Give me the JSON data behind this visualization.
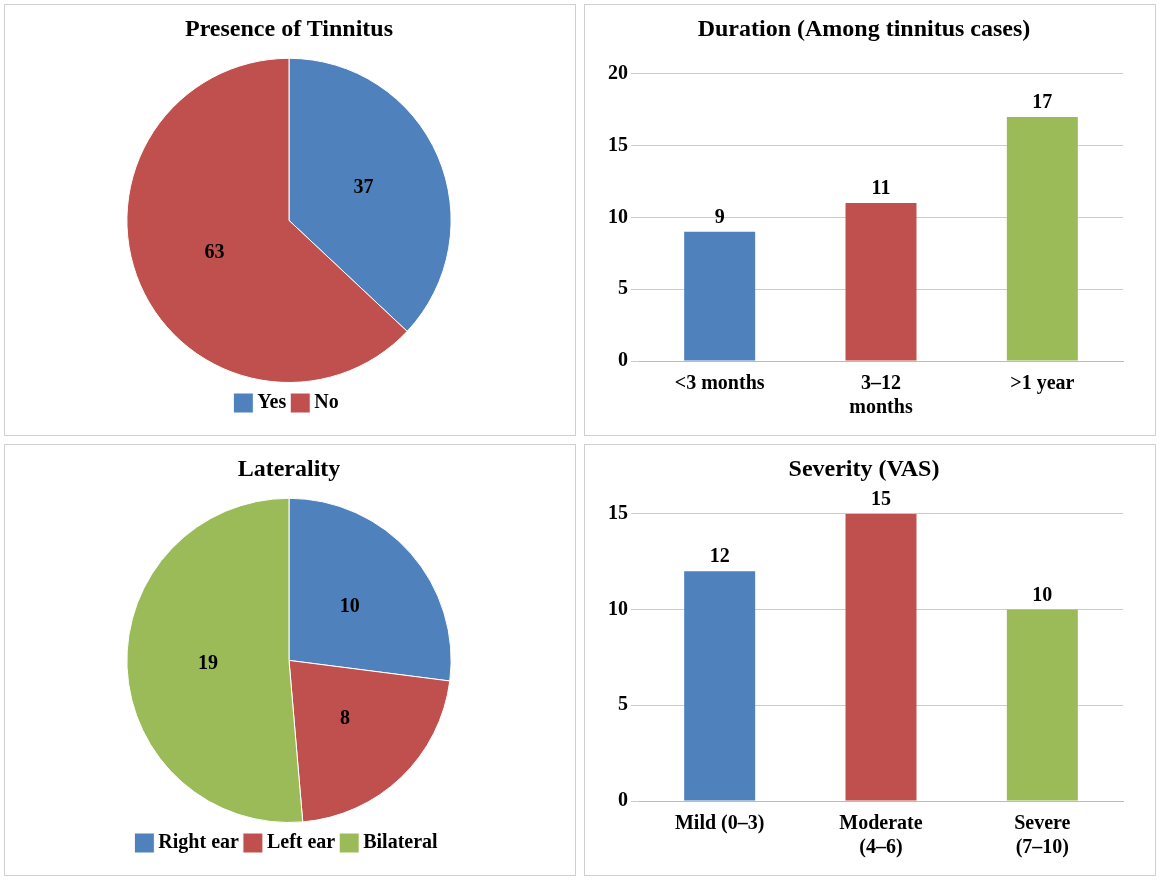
{
  "chart_data": [
    {
      "type": "pie",
      "title": "Presence of Tinnitus",
      "categories": [
        "Yes",
        "No"
      ],
      "values": [
        37,
        63
      ],
      "colors": [
        "#4f81bd",
        "#c0504d"
      ],
      "data_labels": true,
      "legend": "bottom"
    },
    {
      "type": "bar",
      "title": "Duration (Among tinnitus cases)",
      "categories": [
        "<3 months",
        "3–12 months",
        ">1 year"
      ],
      "values": [
        9,
        11,
        17
      ],
      "colors": [
        "#4f81bd",
        "#c0504d",
        "#9bbb59"
      ],
      "ylim": [
        0,
        20
      ],
      "yticks": [
        0,
        5,
        10,
        15,
        20
      ],
      "grid": "y",
      "data_labels": true
    },
    {
      "type": "pie",
      "title": "Laterality",
      "categories": [
        "Right ear",
        "Left ear",
        "Bilateral"
      ],
      "values": [
        10,
        8,
        19
      ],
      "colors": [
        "#4f81bd",
        "#c0504d",
        "#9bbb59"
      ],
      "data_labels": true,
      "legend": "bottom"
    },
    {
      "type": "bar",
      "title": "Severity (VAS)",
      "categories": [
        "Mild (0–3)",
        "Moderate (4–6)",
        "Severe (7–10)"
      ],
      "values": [
        12,
        15,
        10
      ],
      "colors": [
        "#4f81bd",
        "#c0504d",
        "#9bbb59"
      ],
      "ylim": [
        0,
        15
      ],
      "yticks": [
        0,
        5,
        10,
        15
      ],
      "grid": "y",
      "data_labels": true
    }
  ]
}
